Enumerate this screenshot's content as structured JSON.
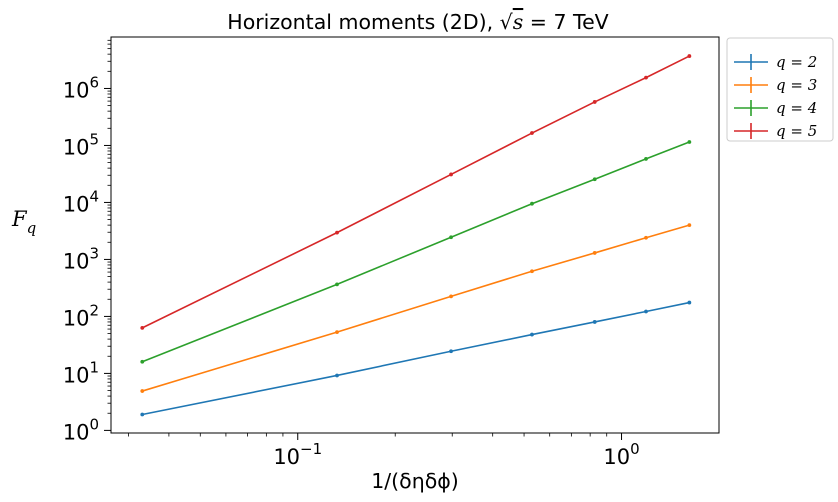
{
  "chart_data": {
    "type": "line",
    "title": {
      "prefix": "Horizontal moments (2D), ",
      "sqrt_symbol": "√",
      "sqrt_var": "s",
      "suffix": " = 7 TeV"
    },
    "xlabel": "1/(δηδϕ)",
    "ylabel": {
      "main": "F",
      "sub": "q"
    },
    "x_scale": "log",
    "y_scale": "log",
    "xlim": [
      0.0265,
      2.0
    ],
    "ylim": [
      0.9,
      8000000
    ],
    "x_ticks": [
      {
        "base": "10",
        "exp": "−1",
        "value": 0.1
      },
      {
        "base": "10",
        "exp": "0",
        "value": 1
      }
    ],
    "y_ticks": [
      {
        "base": "10",
        "exp": "0",
        "value": 1
      },
      {
        "base": "10",
        "exp": "1",
        "value": 10
      },
      {
        "base": "10",
        "exp": "2",
        "value": 100
      },
      {
        "base": "10",
        "exp": "3",
        "value": 1000
      },
      {
        "base": "10",
        "exp": "4",
        "value": 10000
      },
      {
        "base": "10",
        "exp": "5",
        "value": 100000
      },
      {
        "base": "10",
        "exp": "6",
        "value": 1000000
      }
    ],
    "grid": false,
    "legend_position": "outside-top-right",
    "x": [
      0.0331,
      0.1322,
      0.2975,
      0.5289,
      0.8264,
      1.19,
      1.6198
    ],
    "series": [
      {
        "name": "q = 2",
        "color": "#1f77b4",
        "values": [
          1.9,
          9.2,
          24.5,
          48,
          80,
          122,
          175
        ]
      },
      {
        "name": "q = 3",
        "color": "#ff7f0e",
        "values": [
          4.9,
          53,
          225,
          620,
          1300,
          2400,
          4000
        ]
      },
      {
        "name": "q = 4",
        "color": "#2ca02c",
        "values": [
          16,
          365,
          2450,
          9500,
          25500,
          58000,
          115000
        ]
      },
      {
        "name": "q = 5",
        "color": "#d62728",
        "values": [
          63,
          2950,
          31000,
          165000,
          580000,
          1550000,
          3700000
        ]
      }
    ]
  }
}
